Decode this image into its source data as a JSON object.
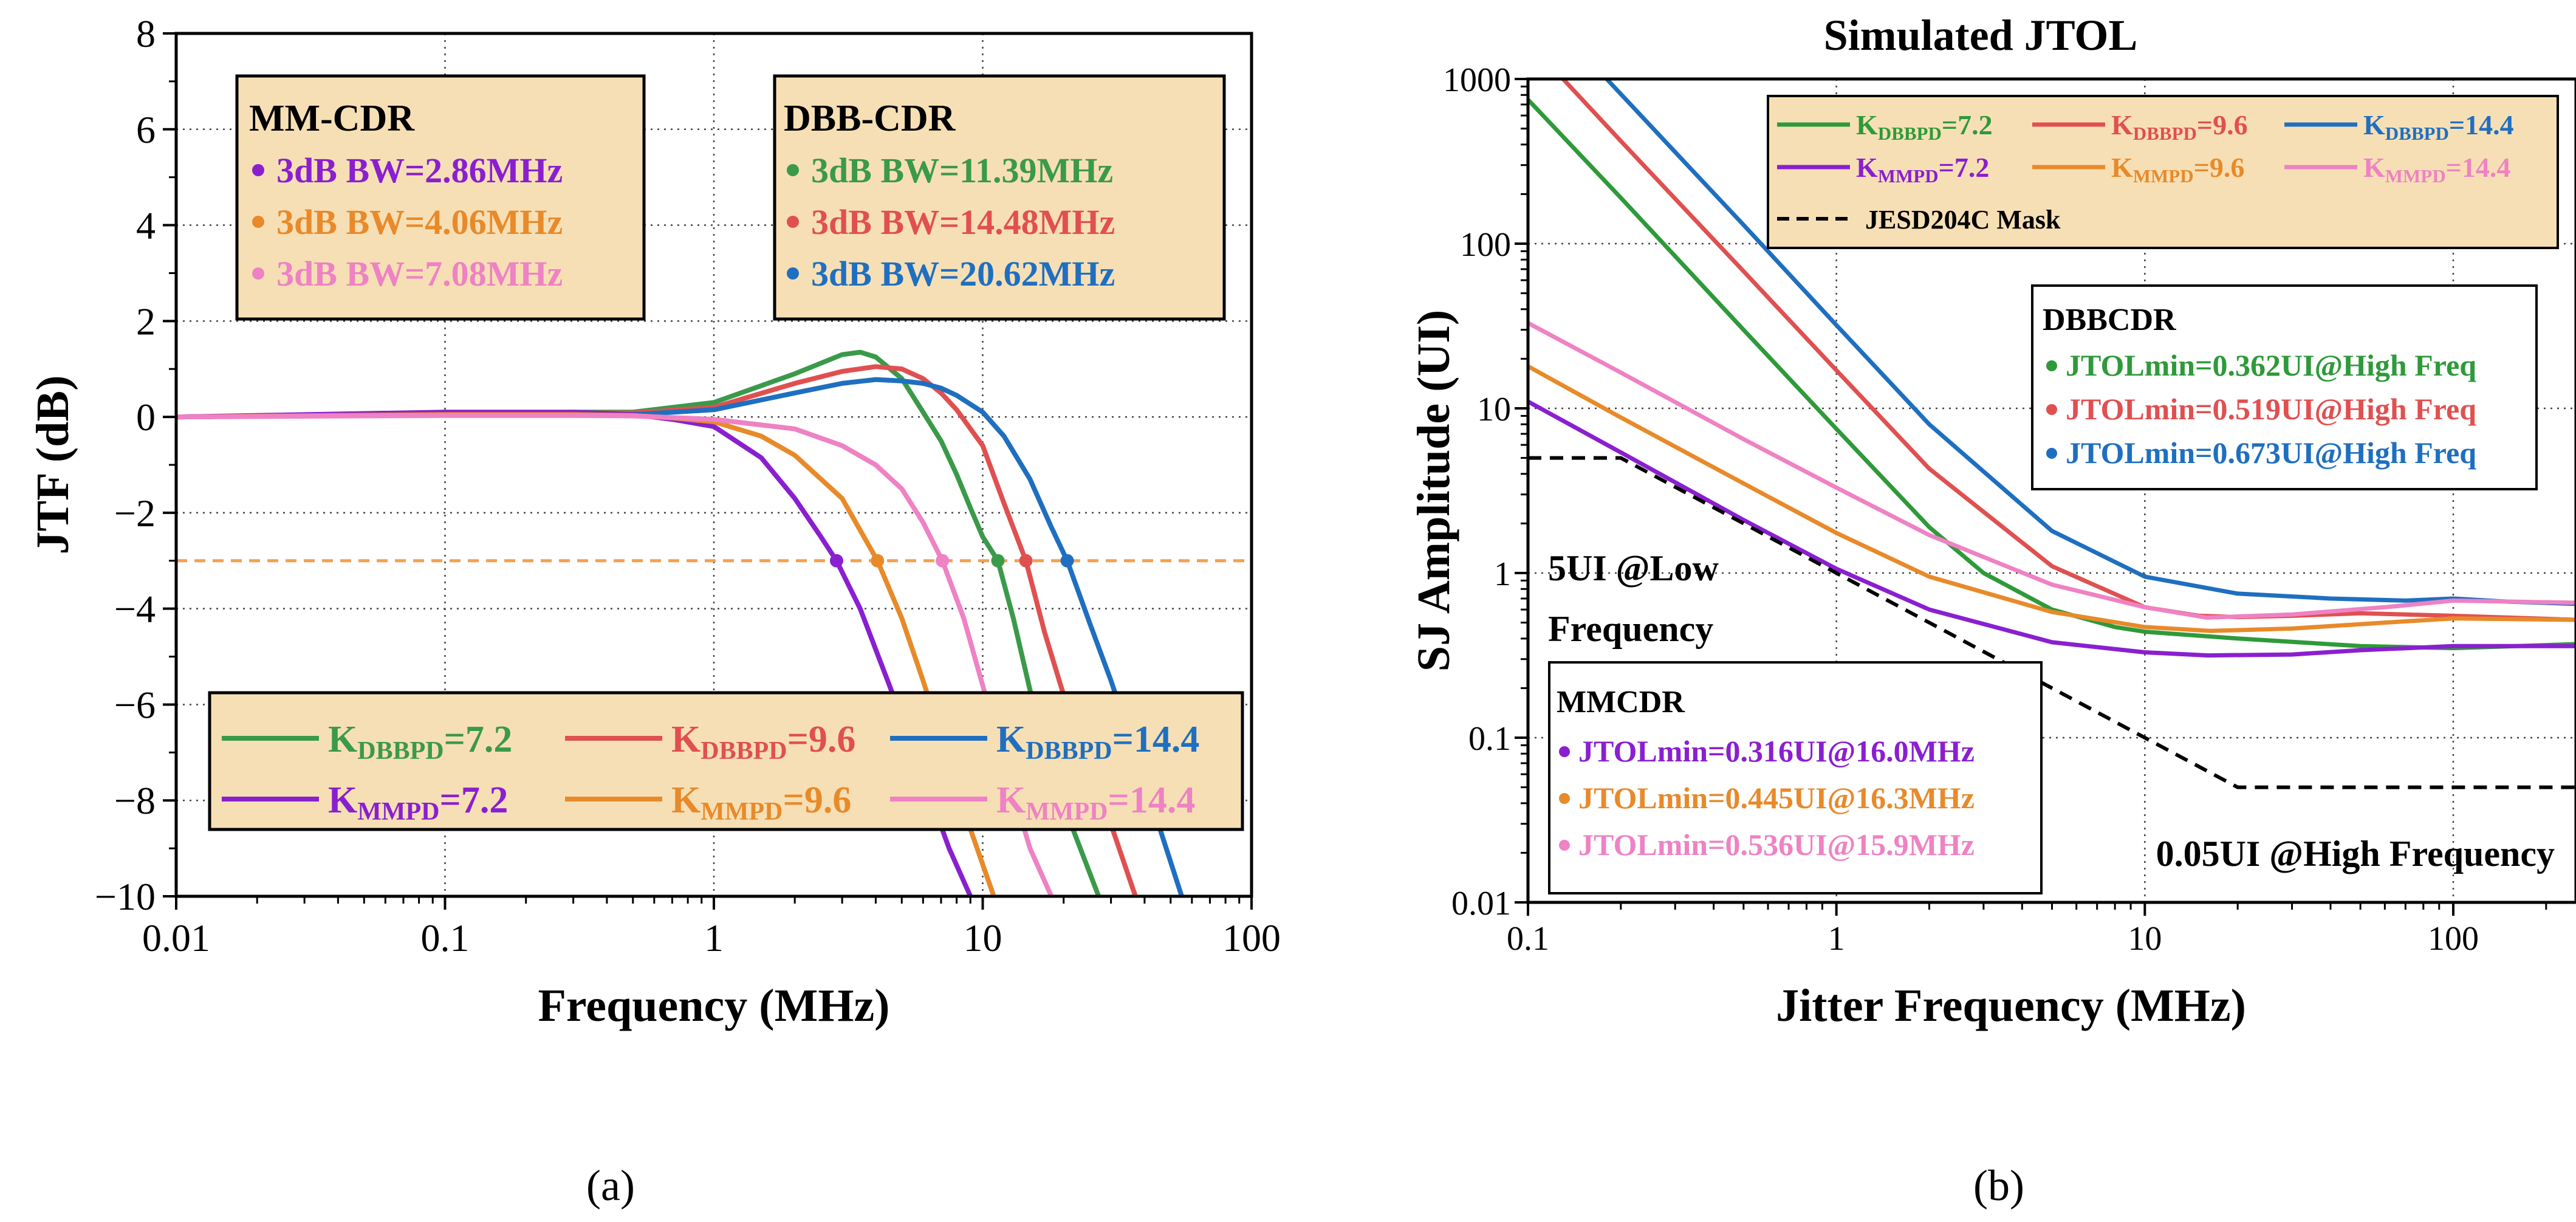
{
  "colors": {
    "dbb72": "#3a9a4a",
    "dbb96": "#e05050",
    "dbb144": "#1f6fc0",
    "mm72": "#8a1fd0",
    "mm96": "#e88a2a",
    "mm144": "#ee82c4",
    "legend_bg": "#f7dfb5",
    "threshold": "#f4a050",
    "mask": "#000000"
  },
  "captions": {
    "a": "(a)",
    "b": "(b)"
  },
  "chart_data": [
    {
      "id": "a",
      "type": "line",
      "title": "",
      "xlabel": "Frequency (MHz)",
      "ylabel": "JTF (dB)",
      "xscale": "log",
      "xlim": [
        0.01,
        100
      ],
      "ylim": [
        -10,
        8
      ],
      "xticks": [
        0.01,
        0.1,
        1,
        10,
        100
      ],
      "xtick_labels": [
        "0.01",
        "0.1",
        "1",
        "10",
        "100"
      ],
      "yticks": [
        -10,
        -8,
        -6,
        -4,
        -2,
        0,
        2,
        4,
        6,
        8
      ],
      "ytick_labels": [
        "−10",
        "−8",
        "−6",
        "−4",
        "−2",
        "0",
        "2",
        "4",
        "6",
        "8"
      ],
      "grid": true,
      "threshold": -3,
      "series": [
        {
          "name": "KDBBPD=7.2",
          "base": "K",
          "sub": "DBBPD",
          "val": "=7.2",
          "color": "#3a9a4a",
          "x": [
            0.01,
            0.1,
            0.3,
            0.5,
            1,
            2,
            3,
            3.5,
            4,
            5,
            6,
            7,
            8,
            9,
            10,
            11.39,
            13,
            15,
            18,
            22,
            27
          ],
          "y": [
            0,
            0.05,
            0.1,
            0.1,
            0.3,
            0.9,
            1.3,
            1.35,
            1.25,
            0.8,
            0.1,
            -0.5,
            -1.2,
            -1.9,
            -2.5,
            -3,
            -4.2,
            -5.7,
            -7.3,
            -8.7,
            -10
          ]
        },
        {
          "name": "KDBBPD=9.6",
          "base": "K",
          "sub": "DBBPD",
          "val": "=9.6",
          "color": "#e05050",
          "x": [
            0.01,
            0.1,
            0.3,
            0.5,
            1,
            2,
            3,
            4,
            5,
            6,
            7,
            8,
            10,
            12,
            14.48,
            17,
            20,
            25,
            30,
            37
          ],
          "y": [
            0,
            0.05,
            0.08,
            0.08,
            0.2,
            0.7,
            0.95,
            1.05,
            1.0,
            0.8,
            0.5,
            0.15,
            -0.6,
            -1.8,
            -3,
            -4.5,
            -5.8,
            -7.3,
            -8.5,
            -10
          ]
        },
        {
          "name": "KDBBPD=14.4",
          "base": "K",
          "sub": "DBBPD",
          "val": "=14.4",
          "color": "#1f6fc0",
          "x": [
            0.01,
            0.1,
            0.3,
            0.5,
            1,
            2,
            3,
            4,
            5,
            6,
            7,
            8,
            10,
            12,
            15,
            18,
            20.62,
            25,
            30,
            40,
            55
          ],
          "y": [
            0,
            0.05,
            0.05,
            0.05,
            0.15,
            0.5,
            0.7,
            0.78,
            0.75,
            0.7,
            0.6,
            0.45,
            0.1,
            -0.4,
            -1.3,
            -2.3,
            -3,
            -4.3,
            -5.5,
            -7.6,
            -10
          ]
        },
        {
          "name": "KMMPD=7.2",
          "base": "K",
          "sub": "MMPD",
          "val": "=7.2",
          "color": "#8a1fd0",
          "x": [
            0.01,
            0.1,
            0.3,
            0.5,
            0.7,
            1,
            1.5,
            2,
            2.5,
            2.86,
            3.5,
            4.5,
            6,
            7.5,
            9
          ],
          "y": [
            0,
            0.1,
            0.1,
            0.05,
            -0.05,
            -0.2,
            -0.85,
            -1.7,
            -2.5,
            -3,
            -4,
            -5.6,
            -7.5,
            -9,
            -10
          ]
        },
        {
          "name": "KMMPD=9.6",
          "base": "K",
          "sub": "MMPD",
          "val": "=9.6",
          "color": "#e88a2a",
          "x": [
            0.01,
            0.1,
            0.3,
            0.5,
            0.7,
            1,
            1.5,
            2,
            3,
            4.06,
            5,
            6,
            7.5,
            9,
            11
          ],
          "y": [
            0,
            0.05,
            0.05,
            0.03,
            -0.02,
            -0.1,
            -0.4,
            -0.8,
            -1.7,
            -3,
            -4.2,
            -5.5,
            -7.2,
            -8.6,
            -10
          ]
        },
        {
          "name": "KMMPD=14.4",
          "base": "K",
          "sub": "MMPD",
          "val": "=14.4",
          "color": "#ee82c4",
          "x": [
            0.01,
            0.1,
            0.3,
            0.5,
            1,
            2,
            3,
            4,
            5,
            6,
            7.08,
            8.5,
            10,
            12,
            15,
            18
          ],
          "y": [
            0,
            0.03,
            0.03,
            0.02,
            -0.05,
            -0.25,
            -0.6,
            -1.0,
            -1.5,
            -2.2,
            -3,
            -4.2,
            -5.6,
            -7.2,
            -9,
            -10
          ]
        }
      ],
      "markers": [
        {
          "x": 2.86,
          "y": -3,
          "color": "#8a1fd0"
        },
        {
          "x": 4.06,
          "y": -3,
          "color": "#e88a2a"
        },
        {
          "x": 7.08,
          "y": -3,
          "color": "#ee82c4"
        },
        {
          "x": 11.39,
          "y": -3,
          "color": "#3a9a4a"
        },
        {
          "x": 14.48,
          "y": -3,
          "color": "#e05050"
        },
        {
          "x": 20.62,
          "y": -3,
          "color": "#1f6fc0"
        }
      ],
      "annotations": {
        "mm_box": {
          "title": "MM-CDR",
          "items": [
            {
              "text": "3dB BW=2.86MHz",
              "color": "#8a1fd0"
            },
            {
              "text": "3dB BW=4.06MHz",
              "color": "#e88a2a"
            },
            {
              "text": "3dB BW=7.08MHz",
              "color": "#ee82c4"
            }
          ]
        },
        "dbb_box": {
          "title": "DBB-CDR",
          "items": [
            {
              "text": "3dB BW=11.39MHz",
              "color": "#3a9a4a"
            },
            {
              "text": "3dB BW=14.48MHz",
              "color": "#e05050"
            },
            {
              "text": "3dB BW=20.62MHz",
              "color": "#1f6fc0"
            }
          ]
        }
      }
    },
    {
      "id": "b",
      "type": "line",
      "title": "Simulated JTOL",
      "xlabel": "Jitter Frequency (MHz)",
      "ylabel": "SJ Amplitude (UI)",
      "xscale": "log",
      "yscale": "log",
      "xlim": [
        0.1,
        250
      ],
      "ylim": [
        0.01,
        1000
      ],
      "xticks": [
        0.1,
        1,
        10,
        100
      ],
      "xtick_labels": [
        "0.1",
        "1",
        "10",
        "100"
      ],
      "yticks": [
        0.01,
        0.1,
        1,
        10,
        100,
        1000
      ],
      "ytick_labels": [
        "0.01",
        "0.1",
        "1",
        "10",
        "100",
        "1000"
      ],
      "grid": true,
      "series": [
        {
          "name": "KDBBPD=7.2",
          "base": "K",
          "sub": "DBBPD",
          "val": "=7.2",
          "color": "#2e9a3a",
          "x": [
            0.1,
            0.2,
            0.5,
            1,
            2,
            3,
            5,
            8,
            10,
            20,
            50,
            100,
            250
          ],
          "y": [
            750,
            190,
            30,
            7.5,
            1.9,
            1.0,
            0.6,
            0.47,
            0.44,
            0.4,
            0.36,
            0.35,
            0.37
          ]
        },
        {
          "name": "KDBBPD=9.6",
          "base": "K",
          "sub": "DBBPD",
          "val": "=9.6",
          "color": "#e05050",
          "x": [
            0.13,
            0.2,
            0.5,
            1,
            2,
            5,
            10,
            15,
            20,
            30,
            50,
            100,
            250
          ],
          "y": [
            1000,
            420,
            68,
            17,
            4.3,
            1.1,
            0.62,
            0.55,
            0.54,
            0.55,
            0.57,
            0.55,
            0.52
          ]
        },
        {
          "name": "KDBBPD=14.4",
          "base": "K",
          "sub": "DBBPD",
          "val": "=14.4",
          "color": "#1f6fc0",
          "x": [
            0.18,
            0.3,
            0.5,
            1,
            2,
            5,
            10,
            20,
            40,
            70,
            100,
            150,
            250
          ],
          "y": [
            1000,
            360,
            130,
            32,
            8,
            1.8,
            0.95,
            0.75,
            0.7,
            0.68,
            0.7,
            0.67,
            0.65
          ]
        },
        {
          "name": "KMMPD=7.2",
          "base": "K",
          "sub": "MMPD",
          "val": "=7.2",
          "color": "#8a1fd0",
          "x": [
            0.1,
            0.2,
            0.5,
            1,
            2,
            5,
            10,
            16,
            30,
            50,
            100,
            250
          ],
          "y": [
            11,
            5.4,
            2.1,
            1.06,
            0.6,
            0.38,
            0.33,
            0.316,
            0.32,
            0.34,
            0.36,
            0.36
          ]
        },
        {
          "name": "KMMPD=9.6",
          "base": "K",
          "sub": "MMPD",
          "val": "=9.6",
          "color": "#e88a2a",
          "x": [
            0.1,
            0.2,
            0.5,
            1,
            2,
            5,
            10,
            16.3,
            30,
            60,
            100,
            250
          ],
          "y": [
            18,
            8.8,
            3.5,
            1.75,
            0.95,
            0.58,
            0.47,
            0.445,
            0.46,
            0.5,
            0.53,
            0.52
          ]
        },
        {
          "name": "KMMPD=14.4",
          "base": "K",
          "sub": "MMPD",
          "val": "=14.4",
          "color": "#ee82c4",
          "x": [
            0.1,
            0.2,
            0.5,
            1,
            2,
            5,
            10,
            15.9,
            30,
            60,
            100,
            250
          ],
          "y": [
            33,
            16.5,
            6.5,
            3.3,
            1.7,
            0.85,
            0.62,
            0.536,
            0.56,
            0.62,
            0.68,
            0.66
          ]
        },
        {
          "name": "JESD204C Mask",
          "color": "#000000",
          "dashed": true,
          "x": [
            0.1,
            0.2,
            20,
            250
          ],
          "y": [
            5,
            5,
            0.05,
            0.05
          ]
        }
      ],
      "annotations": {
        "low_freq": [
          "5UI @Low",
          "Frequency"
        ],
        "high_freq": "0.05UI @High Frequency",
        "dbb_box": {
          "title": "DBBCDR",
          "items": [
            {
              "text": "JTOLmin=0.362UI@High Freq",
              "color": "#2e9a3a"
            },
            {
              "text": "JTOLmin=0.519UI@High Freq",
              "color": "#e05050"
            },
            {
              "text": "JTOLmin=0.673UI@High Freq",
              "color": "#1f6fc0"
            }
          ]
        },
        "mm_box": {
          "title": "MMCDR",
          "items": [
            {
              "text": "JTOLmin=0.316UI@16.0MHz",
              "color": "#8a1fd0"
            },
            {
              "text": "JTOLmin=0.445UI@16.3MHz",
              "color": "#e88a2a"
            },
            {
              "text": "JTOLmin=0.536UI@15.9MHz",
              "color": "#ee82c4"
            }
          ]
        }
      }
    }
  ]
}
